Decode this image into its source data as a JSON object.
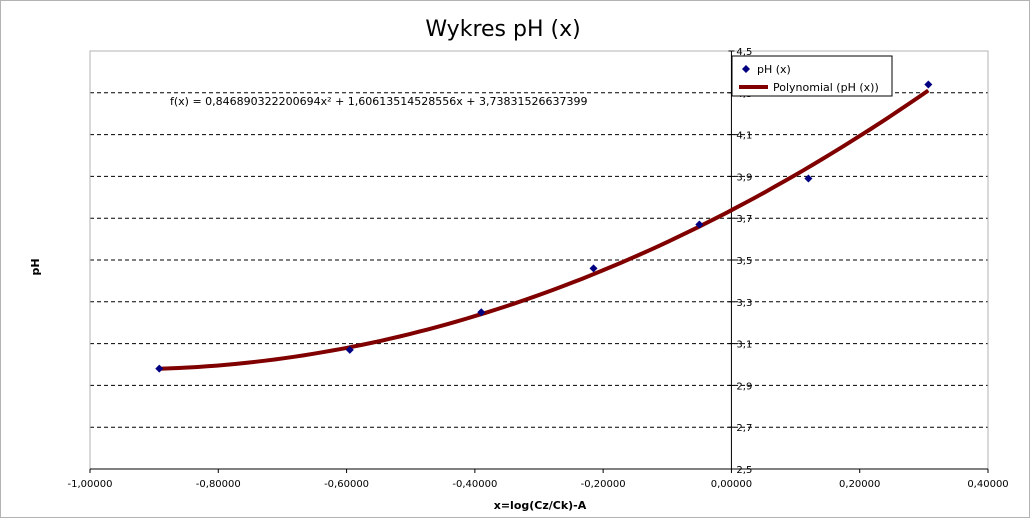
{
  "chart_data": {
    "type": "scatter",
    "title": "Wykres pH (x)",
    "xlabel": "x=log(Cz/Ck)-A",
    "ylabel": "pH",
    "xlim": [
      -1.0,
      0.4
    ],
    "ylim": [
      2.5,
      4.5
    ],
    "x_ticks": [
      "-1,00000",
      "-0,80000",
      "-0,60000",
      "-0,40000",
      "-0,20000",
      "0,00000",
      "0,20000",
      "0,40000"
    ],
    "y_ticks": [
      "2,5",
      "2,7",
      "2,9",
      "3,1",
      "3,3",
      "3,5",
      "3,7",
      "3,9",
      "4,1",
      "4,3",
      "4,5"
    ],
    "grid": "horizontal dashed",
    "legend_placement": "top-right",
    "points": {
      "name": "pH (x)",
      "color": "#000080",
      "x": [
        -0.892,
        -0.595,
        -0.39,
        -0.215,
        -0.05,
        0.12,
        0.307
      ],
      "y": [
        2.98,
        3.07,
        3.25,
        3.46,
        3.67,
        3.89,
        4.34
      ]
    },
    "trendline": {
      "name": "Polynomial (pH (x))",
      "color": "#800000",
      "a": 0.846890322200694,
      "b": 1.60613514528556,
      "c": 3.73831526637399,
      "x_range": [
        -0.892,
        0.307
      ]
    },
    "equation": "f(x) = 0,846890322200694x² + 1,60613514528556x + 3,73831526637399"
  }
}
